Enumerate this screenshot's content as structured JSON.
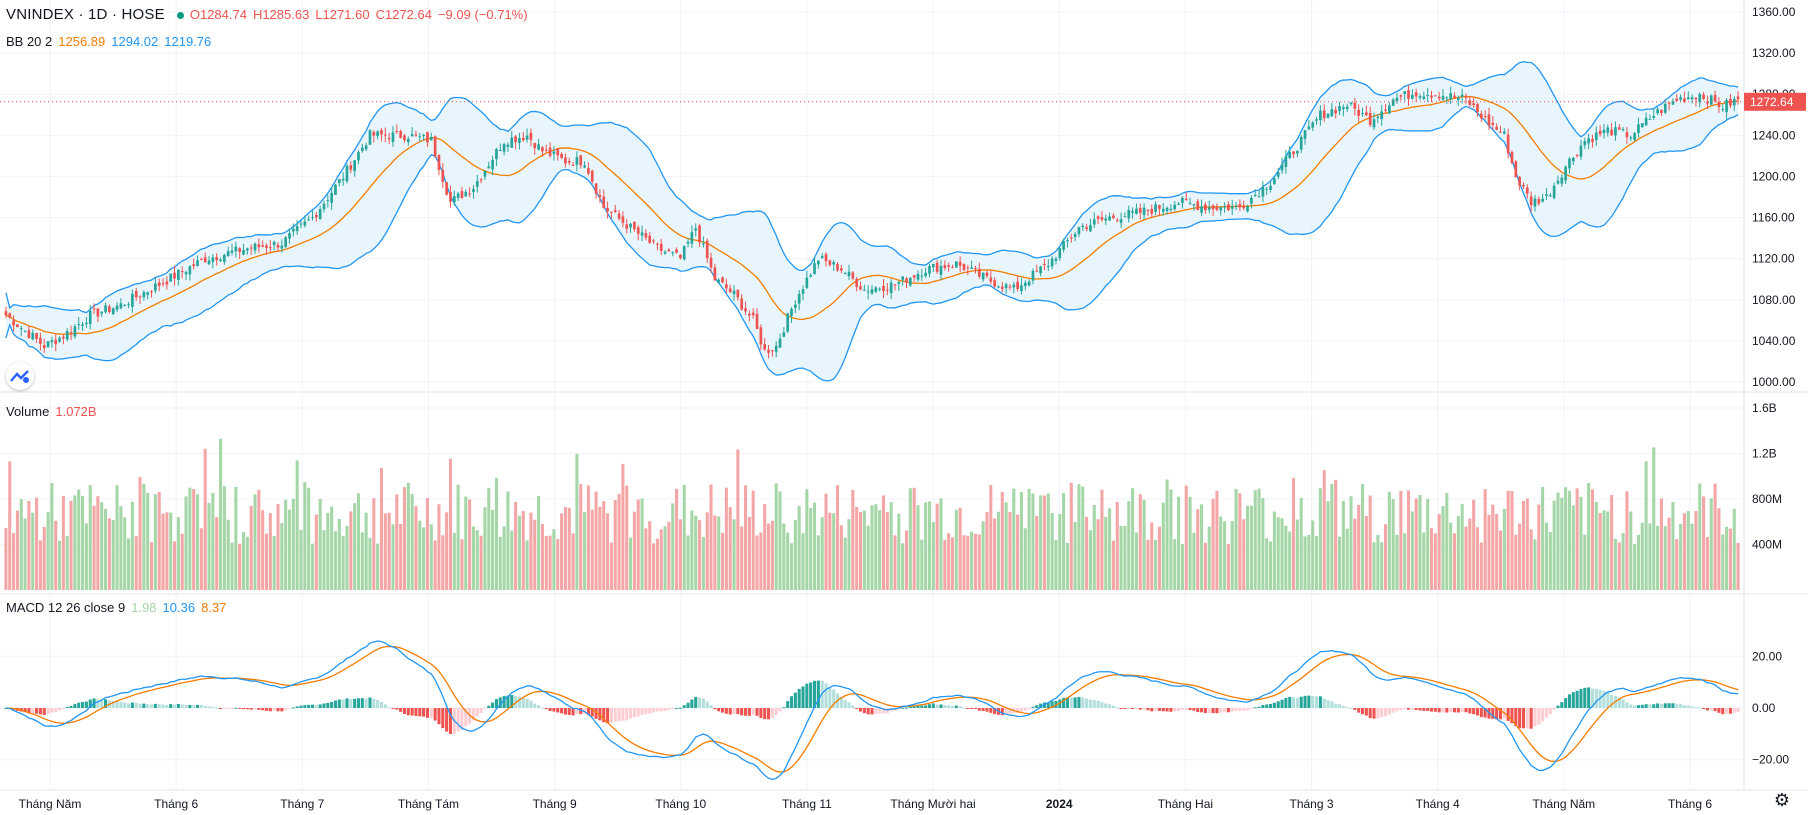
{
  "header": {
    "symbol": "VNINDEX · 1D · HOSE",
    "ohlc": {
      "o": "O1284.74",
      "h": "H1285.63",
      "l": "L1271.60",
      "c": "C1272.64",
      "chg": "−9.09 (−0.71%)"
    }
  },
  "bb_legend": {
    "label": "BB 20 2",
    "mid": "1256.89",
    "upper": "1294.02",
    "lower": "1219.76"
  },
  "vol_legend": {
    "label": "Volume",
    "value": "1.072B"
  },
  "macd_legend": {
    "label": "MACD 12 26 close 9",
    "hist": "1.98",
    "macd": "10.36",
    "signal": "8.37"
  },
  "last_price": "1272.64",
  "colors": {
    "up": "#26a69a",
    "down": "#ef5350",
    "bb_mid": "#f57c00",
    "bb_band": "#2196f3",
    "bb_fill": "#e3f2fd",
    "macd": "#2196f3",
    "signal": "#f57c00"
  },
  "icons": {
    "logo": "tradingview-logo-icon",
    "settings": "gear-icon"
  },
  "chart_data": [
    {
      "type": "candlestick",
      "title": "VNINDEX · 1D · HOSE",
      "y_ticks": [
        "1360.00",
        "1320.00",
        "1280.00",
        "1240.00",
        "1200.00",
        "1160.00",
        "1120.00",
        "1080.00",
        "1040.00",
        "1000.00"
      ],
      "ylim": [
        1000,
        1360
      ],
      "x_ticks": [
        "Tháng Năm",
        "Tháng 6",
        "Tháng 7",
        "Tháng Tám",
        "Tháng 9",
        "Tháng 10",
        "Tháng 11",
        "Tháng Mười hai",
        "2024",
        "Tháng Hai",
        "Tháng 3",
        "Tháng 4",
        "Tháng Năm",
        "Tháng 6"
      ],
      "close_keypoints": [
        [
          0,
          1065
        ],
        [
          5,
          1050
        ],
        [
          10,
          1035
        ],
        [
          15,
          1045
        ],
        [
          22,
          1065
        ],
        [
          30,
          1075
        ],
        [
          40,
          1095
        ],
        [
          52,
          1120
        ],
        [
          63,
          1130
        ],
        [
          72,
          1135
        ],
        [
          80,
          1160
        ],
        [
          88,
          1200
        ],
        [
          95,
          1240
        ],
        [
          105,
          1240
        ],
        [
          111,
          1235
        ],
        [
          116,
          1175
        ],
        [
          122,
          1190
        ],
        [
          130,
          1235
        ],
        [
          136,
          1240
        ],
        [
          140,
          1225
        ],
        [
          146,
          1215
        ],
        [
          151,
          1215
        ],
        [
          156,
          1170
        ],
        [
          163,
          1150
        ],
        [
          170,
          1130
        ],
        [
          176,
          1120
        ],
        [
          180,
          1150
        ],
        [
          185,
          1100
        ],
        [
          190,
          1085
        ],
        [
          195,
          1060
        ],
        [
          198,
          1030
        ],
        [
          201,
          1035
        ],
        [
          206,
          1080
        ],
        [
          212,
          1120
        ],
        [
          218,
          1110
        ],
        [
          224,
          1090
        ],
        [
          232,
          1095
        ],
        [
          240,
          1110
        ],
        [
          248,
          1115
        ],
        [
          256,
          1100
        ],
        [
          263,
          1090
        ],
        [
          272,
          1115
        ],
        [
          280,
          1150
        ],
        [
          288,
          1160
        ],
        [
          296,
          1165
        ],
        [
          306,
          1175
        ],
        [
          314,
          1170
        ],
        [
          322,
          1170
        ],
        [
          330,
          1195
        ],
        [
          337,
          1230
        ],
        [
          343,
          1260
        ],
        [
          350,
          1270
        ],
        [
          356,
          1255
        ],
        [
          362,
          1275
        ],
        [
          368,
          1282
        ],
        [
          374,
          1280
        ],
        [
          381,
          1275
        ],
        [
          386,
          1255
        ],
        [
          391,
          1240
        ],
        [
          394,
          1200
        ],
        [
          398,
          1175
        ],
        [
          402,
          1180
        ],
        [
          407,
          1210
        ],
        [
          412,
          1235
        ],
        [
          418,
          1245
        ],
        [
          424,
          1240
        ],
        [
          430,
          1260
        ],
        [
          436,
          1275
        ],
        [
          442,
          1280
        ],
        [
          448,
          1268
        ],
        [
          452,
          1275
        ]
      ]
    },
    {
      "type": "bar",
      "title": "Volume",
      "y_ticks": [
        "1.6B",
        "1.2B",
        "800M",
        "400M"
      ],
      "ylim": [
        0,
        1.6
      ],
      "last_value": "1.072B"
    },
    {
      "type": "line",
      "title": "MACD 12 26 close 9",
      "y_ticks": [
        "20.00",
        "0.00",
        "−20.00"
      ],
      "series": [
        {
          "name": "MACD",
          "last": 10.36
        },
        {
          "name": "Signal",
          "last": 8.37
        },
        {
          "name": "Histogram",
          "last": 1.98
        }
      ]
    }
  ]
}
